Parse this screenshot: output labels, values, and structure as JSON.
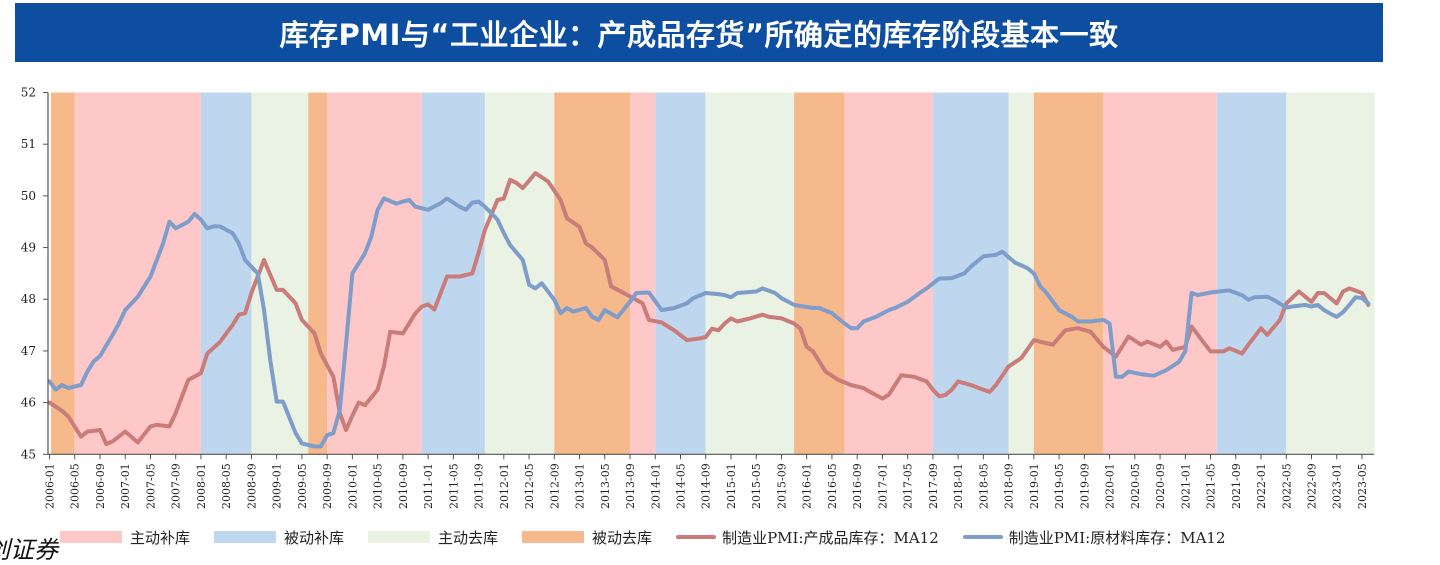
{
  "header": {
    "title": "库存PMI与“工业企业：产成品存货”所确定的库存阶段基本一致"
  },
  "watermark": "创证券",
  "chart_data": {
    "type": "line",
    "title": "库存PMI与“工业企业：产成品存货”所确定的库存阶段基本一致",
    "xlabel": "",
    "ylabel": "",
    "ylim": [
      45,
      52
    ],
    "y_ticks": [
      "45",
      "46",
      "47",
      "48",
      "49",
      "50",
      "51",
      "52"
    ],
    "x_ticks": [
      "2006-01",
      "2006-05",
      "2006-09",
      "2007-01",
      "2007-05",
      "2007-09",
      "2008-01",
      "2008-05",
      "2008-09",
      "2009-01",
      "2009-05",
      "2009-09",
      "2010-01",
      "2010-05",
      "2010-09",
      "2011-01",
      "2011-05",
      "2011-09",
      "2012-01",
      "2012-05",
      "2012-09",
      "2013-01",
      "2013-05",
      "2013-09",
      "2014-01",
      "2014-05",
      "2014-09",
      "2015-01",
      "2015-05",
      "2015-09",
      "2016-01",
      "2016-05",
      "2016-09",
      "2017-01",
      "2017-05",
      "2017-09",
      "2018-01",
      "2018-05",
      "2018-09",
      "2019-01",
      "2019-05",
      "2019-09",
      "2020-01",
      "2020-05",
      "2020-09",
      "2021-01",
      "2021-05",
      "2021-09",
      "2022-01",
      "2022-05",
      "2022-09",
      "2023-01",
      "2023-05"
    ],
    "grid": false,
    "legend_position": "bottom",
    "phase_colors": {
      "主动补库": "#ffc8c8",
      "被动补库": "#bed7ee",
      "主动去库": "#e9f2e3",
      "被动去库": "#f5b98b"
    },
    "phases": [
      {
        "name": "被动去库",
        "start": "2006-01",
        "end": "2006-05"
      },
      {
        "name": "主动补库",
        "start": "2006-05",
        "end": "2008-01"
      },
      {
        "name": "被动补库",
        "start": "2008-01",
        "end": "2008-09"
      },
      {
        "name": "主动去库",
        "start": "2008-09",
        "end": "2009-06"
      },
      {
        "name": "被动去库",
        "start": "2009-06",
        "end": "2009-09"
      },
      {
        "name": "主动补库",
        "start": "2009-09",
        "end": "2010-12"
      },
      {
        "name": "被动补库",
        "start": "2010-12",
        "end": "2011-10"
      },
      {
        "name": "主动去库",
        "start": "2011-10",
        "end": "2012-09"
      },
      {
        "name": "被动去库",
        "start": "2012-09",
        "end": "2013-09"
      },
      {
        "name": "主动补库",
        "start": "2013-09",
        "end": "2014-01"
      },
      {
        "name": "被动补库",
        "start": "2014-01",
        "end": "2014-09"
      },
      {
        "name": "主动去库",
        "start": "2014-09",
        "end": "2015-11"
      },
      {
        "name": "被动去库",
        "start": "2015-11",
        "end": "2016-07"
      },
      {
        "name": "主动补库",
        "start": "2016-07",
        "end": "2017-09"
      },
      {
        "name": "被动补库",
        "start": "2017-09",
        "end": "2018-09"
      },
      {
        "name": "主动去库",
        "start": "2018-09",
        "end": "2019-01"
      },
      {
        "name": "被动去库",
        "start": "2019-01",
        "end": "2019-12"
      },
      {
        "name": "主动补库",
        "start": "2019-12",
        "end": "2021-06"
      },
      {
        "name": "被动补库",
        "start": "2021-06",
        "end": "2022-05"
      },
      {
        "name": "主动去库",
        "start": "2022-05",
        "end": "2023-07"
      }
    ],
    "series": [
      {
        "name": "制造业PMI:产成品库存：MA12",
        "color": "#c97c79",
        "x": [
          "2006-01",
          "2006-03",
          "2006-04",
          "2006-06",
          "2006-07",
          "2006-09",
          "2006-10",
          "2006-11",
          "2007-01",
          "2007-03",
          "2007-05",
          "2007-06",
          "2007-08",
          "2007-09",
          "2007-11",
          "2008-01",
          "2008-02",
          "2008-04",
          "2008-06",
          "2008-07",
          "2008-08",
          "2008-09",
          "2008-11",
          "2009-01",
          "2009-02",
          "2009-04",
          "2009-05",
          "2009-07",
          "2009-08",
          "2009-10",
          "2009-11",
          "2009-12",
          "2010-01",
          "2010-02",
          "2010-03",
          "2010-05",
          "2010-06",
          "2010-07",
          "2010-09",
          "2010-11",
          "2010-12",
          "2011-01",
          "2011-02",
          "2011-04",
          "2011-06",
          "2011-08",
          "2011-09",
          "2011-10",
          "2011-12",
          "2012-01",
          "2012-02",
          "2012-03",
          "2012-04",
          "2012-06",
          "2012-08",
          "2012-10",
          "2012-11",
          "2013-01",
          "2013-02",
          "2013-03",
          "2013-05",
          "2013-06",
          "2013-08",
          "2013-11",
          "2013-12",
          "2014-02",
          "2014-04",
          "2014-06",
          "2014-08",
          "2014-09",
          "2014-10",
          "2014-11",
          "2014-12",
          "2015-01",
          "2015-02",
          "2015-04",
          "2015-06",
          "2015-07",
          "2015-09",
          "2015-11",
          "2015-12",
          "2016-01",
          "2016-02",
          "2016-04",
          "2016-06",
          "2016-08",
          "2016-10",
          "2016-11",
          "2017-01",
          "2017-02",
          "2017-03",
          "2017-04",
          "2017-06",
          "2017-08",
          "2017-09",
          "2017-10",
          "2017-11",
          "2017-12",
          "2018-01",
          "2018-03",
          "2018-05",
          "2018-06",
          "2018-07",
          "2018-09",
          "2018-11",
          "2019-01",
          "2019-03",
          "2019-04",
          "2019-06",
          "2019-08",
          "2019-10",
          "2019-12",
          "2020-02",
          "2020-04",
          "2020-06",
          "2020-07",
          "2020-09",
          "2020-10",
          "2020-11",
          "2021-01",
          "2021-02",
          "2021-04",
          "2021-05",
          "2021-07",
          "2021-08",
          "2021-10",
          "2021-11",
          "2022-01",
          "2022-02",
          "2022-04",
          "2022-05",
          "2022-07",
          "2022-09",
          "2022-10",
          "2022-11",
          "2023-01",
          "2023-02",
          "2023-03",
          "2023-05",
          "2023-06"
        ],
        "values": [
          46.0,
          45.84,
          45.73,
          45.34,
          45.44,
          45.47,
          45.2,
          45.25,
          45.44,
          45.23,
          45.54,
          45.57,
          45.54,
          45.8,
          46.44,
          46.57,
          46.95,
          47.17,
          47.5,
          47.7,
          47.73,
          48.12,
          48.76,
          48.18,
          48.18,
          47.92,
          47.6,
          47.34,
          46.95,
          46.5,
          45.8,
          45.47,
          45.75,
          46.0,
          45.95,
          46.25,
          46.7,
          47.37,
          47.34,
          47.73,
          47.86,
          47.9,
          47.8,
          48.44,
          48.44,
          48.5,
          48.9,
          49.34,
          49.92,
          49.95,
          50.31,
          50.25,
          50.15,
          50.44,
          50.28,
          49.92,
          49.57,
          49.4,
          49.08,
          49.0,
          48.76,
          48.25,
          48.12,
          47.92,
          47.6,
          47.55,
          47.4,
          47.21,
          47.24,
          47.27,
          47.43,
          47.4,
          47.53,
          47.63,
          47.57,
          47.63,
          47.7,
          47.66,
          47.63,
          47.53,
          47.43,
          47.08,
          46.99,
          46.6,
          46.44,
          46.34,
          46.28,
          46.21,
          46.08,
          46.15,
          46.34,
          46.53,
          46.5,
          46.41,
          46.25,
          46.12,
          46.15,
          46.25,
          46.41,
          46.34,
          46.25,
          46.21,
          46.34,
          46.7,
          46.86,
          47.21,
          47.15,
          47.12,
          47.4,
          47.44,
          47.37,
          47.08,
          46.89,
          47.28,
          47.12,
          47.18,
          47.08,
          47.18,
          47.02,
          47.08,
          47.47,
          47.15,
          46.99,
          46.99,
          47.05,
          46.95,
          47.12,
          47.44,
          47.31,
          47.6,
          47.92,
          48.15,
          47.95,
          48.12,
          48.12,
          47.92,
          48.15,
          48.21,
          48.12,
          47.89
        ]
      },
      {
        "name": "制造业PMI:原材料库存：MA12",
        "color": "#7e9dcb",
        "x": [
          "2006-01",
          "2006-02",
          "2006-03",
          "2006-04",
          "2006-06",
          "2006-07",
          "2006-08",
          "2006-09",
          "2006-11",
          "2006-12",
          "2007-01",
          "2007-03",
          "2007-05",
          "2007-06",
          "2007-07",
          "2007-08",
          "2007-09",
          "2007-11",
          "2007-12",
          "2008-01",
          "2008-02",
          "2008-03",
          "2008-04",
          "2008-06",
          "2008-07",
          "2008-08",
          "2008-10",
          "2008-11",
          "2008-12",
          "2009-01",
          "2009-02",
          "2009-04",
          "2009-05",
          "2009-07",
          "2009-08",
          "2009-09",
          "2009-10",
          "2009-11",
          "2009-12",
          "2010-01",
          "2010-03",
          "2010-04",
          "2010-05",
          "2010-06",
          "2010-08",
          "2010-09",
          "2010-10",
          "2010-11",
          "2011-01",
          "2011-03",
          "2011-04",
          "2011-06",
          "2011-07",
          "2011-08",
          "2011-09",
          "2011-10",
          "2011-12",
          "2012-01",
          "2012-02",
          "2012-04",
          "2012-05",
          "2012-06",
          "2012-07",
          "2012-09",
          "2012-10",
          "2012-11",
          "2012-12",
          "2013-02",
          "2013-03",
          "2013-04",
          "2013-05",
          "2013-07",
          "2013-09",
          "2013-10",
          "2013-12",
          "2014-02",
          "2014-04",
          "2014-06",
          "2014-07",
          "2014-09",
          "2014-11",
          "2014-12",
          "2015-01",
          "2015-02",
          "2015-04",
          "2015-05",
          "2015-06",
          "2015-08",
          "2015-09",
          "2015-11",
          "2015-12",
          "2016-02",
          "2016-03",
          "2016-05",
          "2016-07",
          "2016-08",
          "2016-09",
          "2016-10",
          "2016-12",
          "2017-02",
          "2017-03",
          "2017-05",
          "2017-07",
          "2017-08",
          "2017-10",
          "2017-12",
          "2018-02",
          "2018-03",
          "2018-05",
          "2018-07",
          "2018-08",
          "2018-10",
          "2018-12",
          "2019-01",
          "2019-02",
          "2019-03",
          "2019-05",
          "2019-07",
          "2019-08",
          "2019-10",
          "2019-12",
          "2020-01",
          "2020-02",
          "2020-03",
          "2020-04",
          "2020-06",
          "2020-08",
          "2020-10",
          "2020-12",
          "2021-01",
          "2021-02",
          "2021-03",
          "2021-05",
          "2021-07",
          "2021-08",
          "2021-10",
          "2021-11",
          "2021-12",
          "2022-02",
          "2022-03",
          "2022-05",
          "2022-06",
          "2022-08",
          "2022-09",
          "2022-10",
          "2022-11",
          "2022-12",
          "2023-01",
          "2023-02",
          "2023-03",
          "2023-04",
          "2023-05",
          "2023-06"
        ],
        "values": [
          46.41,
          46.25,
          46.34,
          46.28,
          46.34,
          46.6,
          46.8,
          46.9,
          47.31,
          47.53,
          47.79,
          48.05,
          48.44,
          48.76,
          49.08,
          49.5,
          49.37,
          49.5,
          49.65,
          49.54,
          49.37,
          49.41,
          49.41,
          49.28,
          49.08,
          48.76,
          48.5,
          47.8,
          46.8,
          46.02,
          46.02,
          45.41,
          45.21,
          45.15,
          45.15,
          45.37,
          45.41,
          45.86,
          47.15,
          48.5,
          48.89,
          49.21,
          49.73,
          49.95,
          49.85,
          49.89,
          49.92,
          49.79,
          49.73,
          49.86,
          49.95,
          49.79,
          49.73,
          49.87,
          49.89,
          49.79,
          49.54,
          49.28,
          49.05,
          48.76,
          48.28,
          48.21,
          48.31,
          47.99,
          47.73,
          47.83,
          47.76,
          47.83,
          47.66,
          47.6,
          47.79,
          47.65,
          47.95,
          48.12,
          48.13,
          47.79,
          47.83,
          47.92,
          48.02,
          48.12,
          48.1,
          48.08,
          48.04,
          48.12,
          48.14,
          48.15,
          48.21,
          48.12,
          48.02,
          47.89,
          47.87,
          47.83,
          47.83,
          47.73,
          47.53,
          47.44,
          47.44,
          47.57,
          47.66,
          47.79,
          47.83,
          47.95,
          48.13,
          48.21,
          48.4,
          48.41,
          48.5,
          48.63,
          48.83,
          48.86,
          48.92,
          48.71,
          48.6,
          48.5,
          48.25,
          48.12,
          47.79,
          47.66,
          47.57,
          47.57,
          47.6,
          47.53,
          46.5,
          46.5,
          46.6,
          46.55,
          46.52,
          46.63,
          46.79,
          46.99,
          48.12,
          48.08,
          48.13,
          48.16,
          48.17,
          48.08,
          47.99,
          48.04,
          48.05,
          47.99,
          47.84,
          47.86,
          47.89,
          47.86,
          47.89,
          47.79,
          47.72,
          47.66,
          47.75,
          47.89,
          48.04,
          48.02,
          47.92
        ]
      }
    ],
    "legend": [
      {
        "label": "主动补库",
        "kind": "area",
        "phase": "主动补库"
      },
      {
        "label": "被动补库",
        "kind": "area",
        "phase": "被动补库"
      },
      {
        "label": "主动去库",
        "kind": "area",
        "phase": "主动去库"
      },
      {
        "label": "被动去库",
        "kind": "area",
        "phase": "被动去库"
      },
      {
        "label": "制造业PMI:产成品库存：MA12",
        "kind": "line",
        "series": 0
      },
      {
        "label": "制造业PMI:原材料库存：MA12",
        "kind": "line",
        "series": 1
      }
    ]
  }
}
